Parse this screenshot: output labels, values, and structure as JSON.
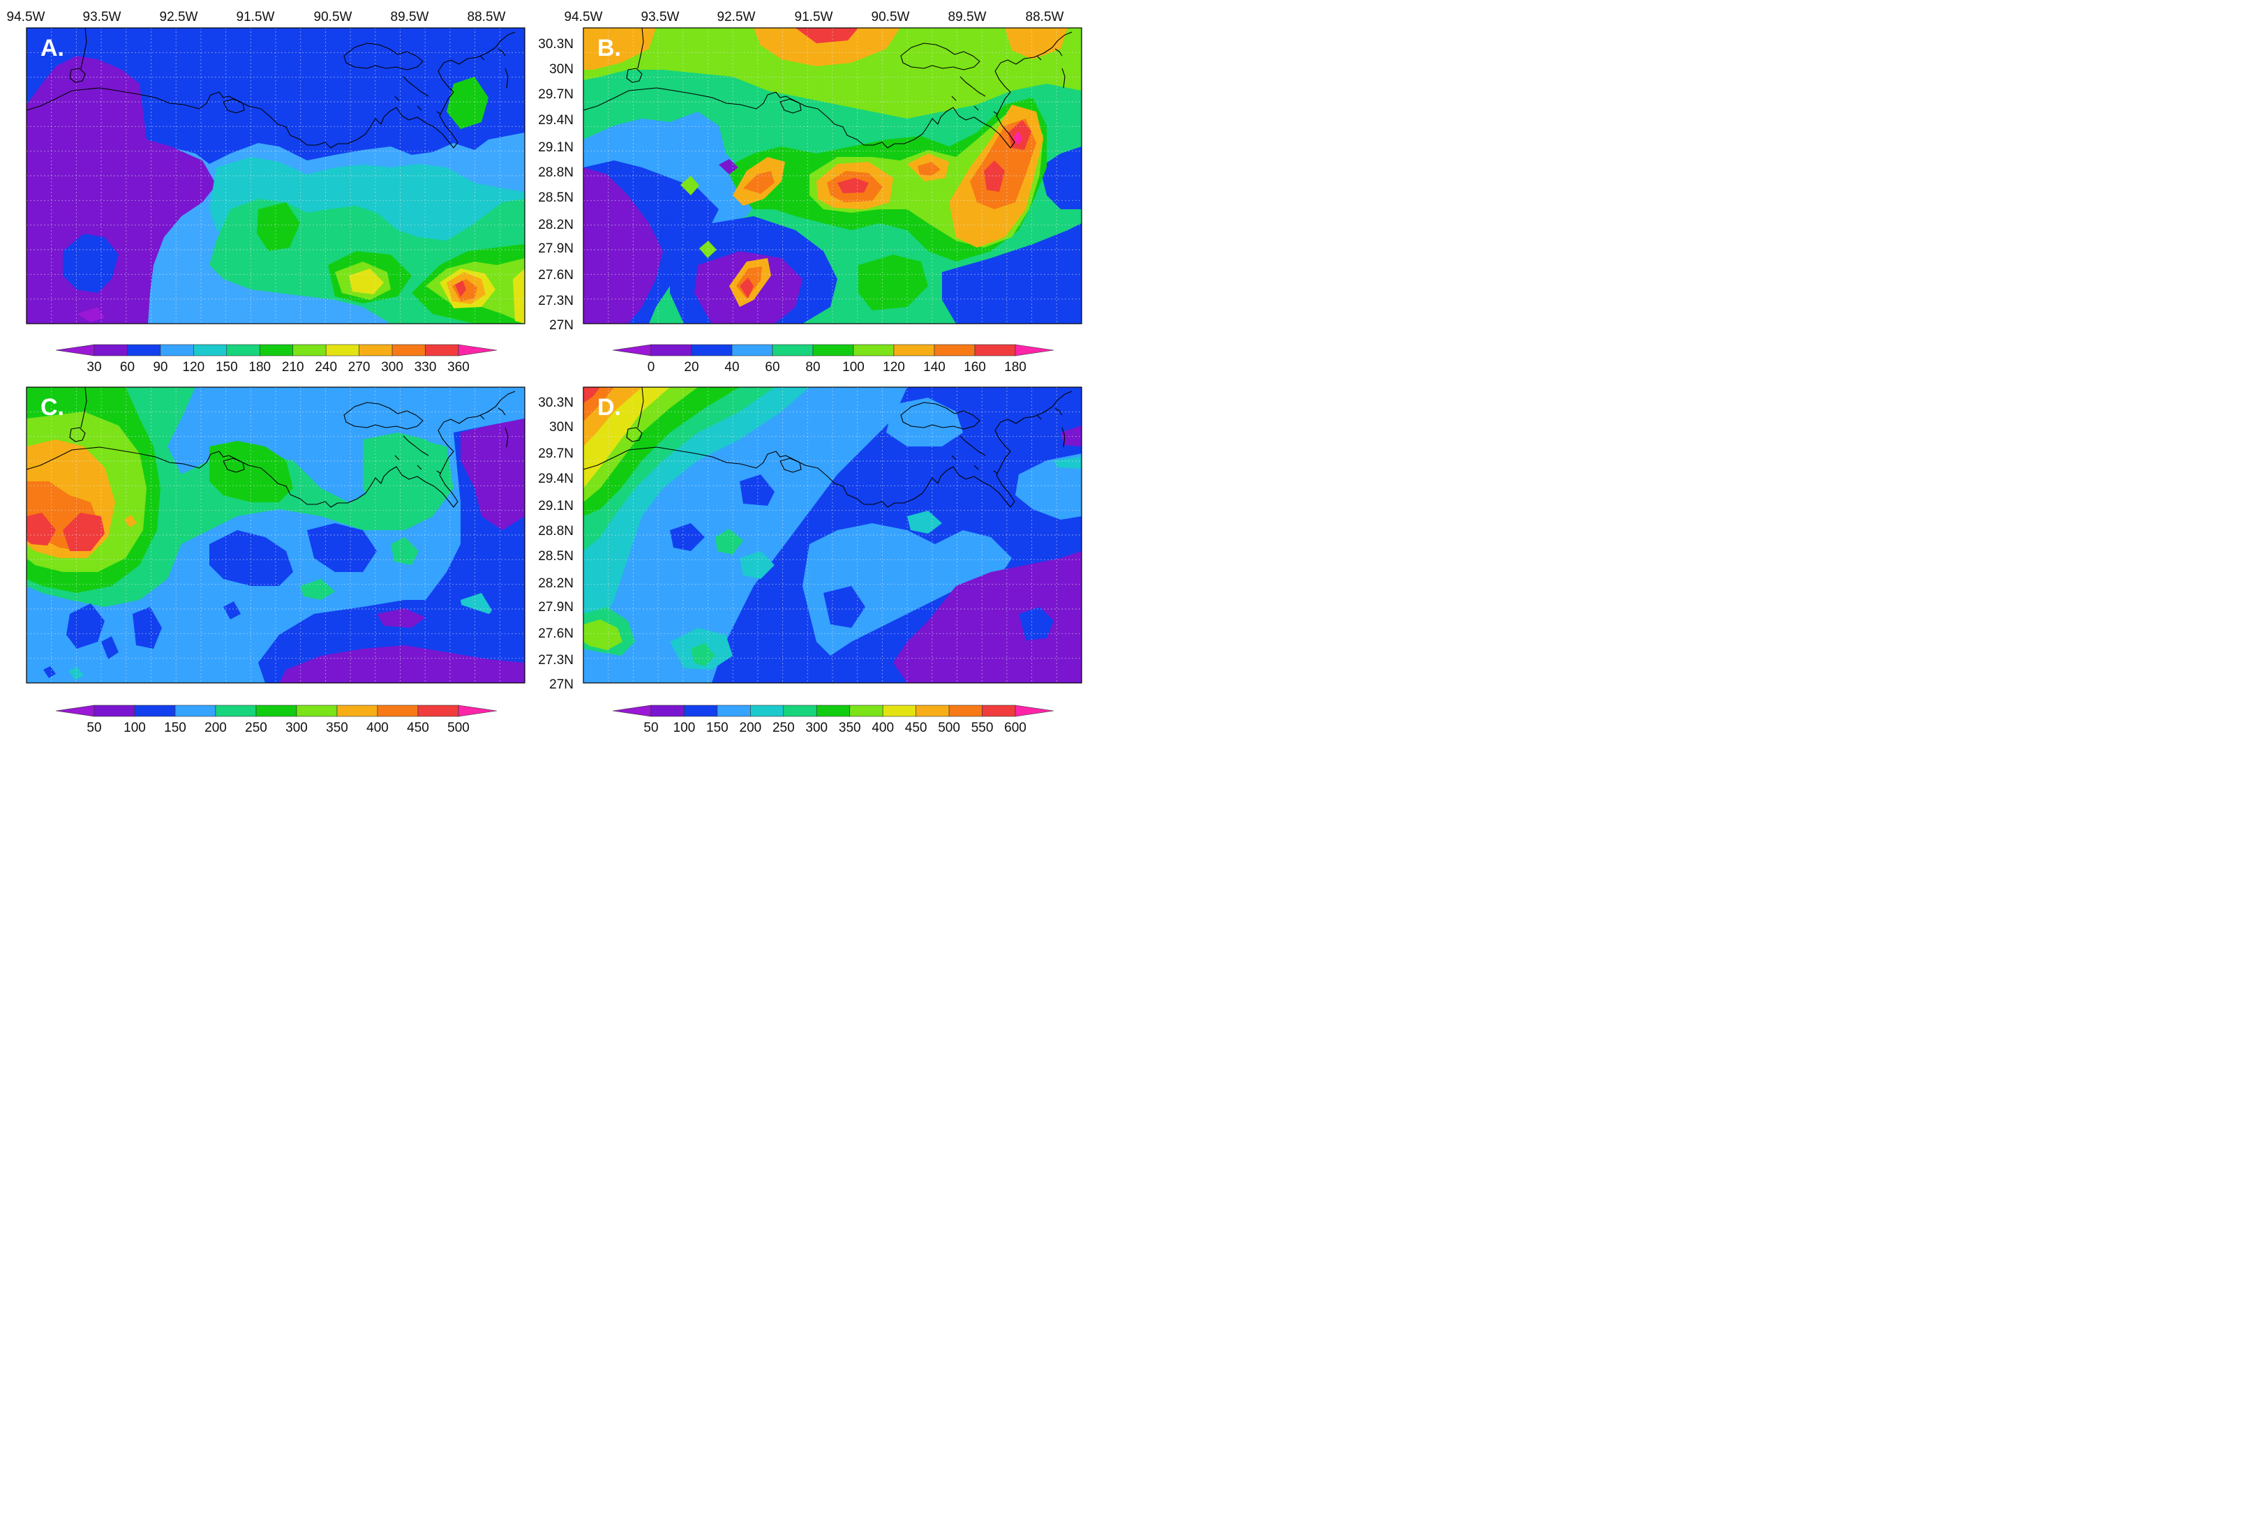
{
  "longitude_ticks": [
    "94.5W",
    "93.5W",
    "92.5W",
    "91.5W",
    "90.5W",
    "89.5W",
    "88.5W"
  ],
  "latitude_ticks": [
    "30.3N",
    "30N",
    "29.7N",
    "29.4N",
    "29.1N",
    "28.8N",
    "28.5N",
    "28.2N",
    "27.9N",
    "27.6N",
    "27.3N",
    "27N"
  ],
  "panels": [
    {
      "label": "A.",
      "background": "#3ea8ff",
      "colorbar": {
        "labels": [
          "30",
          "60",
          "90",
          "120",
          "150",
          "180",
          "210",
          "240",
          "270",
          "300",
          "330",
          "360"
        ],
        "low_end": "#9a18d6",
        "colors": [
          "#7a16cf",
          "#1240ef",
          "#36a3ff",
          "#1cc9cc",
          "#18d47c",
          "#12cc12",
          "#7be318",
          "#e3e312",
          "#f7ae16",
          "#f77a16",
          "#f03c3c"
        ],
        "high_end": "#ff24a8"
      }
    },
    {
      "label": "B.",
      "background": "#18d47c",
      "colorbar": {
        "labels": [
          "0",
          "20",
          "40",
          "60",
          "80",
          "100",
          "120",
          "140",
          "160",
          "180"
        ],
        "low_end": "#9a18d6",
        "colors": [
          "#7a16cf",
          "#1240ef",
          "#36a3ff",
          "#18d47c",
          "#12cc12",
          "#7be318",
          "#f7ae16",
          "#f77a16",
          "#f03c3c"
        ],
        "high_end": "#ff24a8"
      }
    },
    {
      "label": "C.",
      "background": "#36a3ff",
      "colorbar": {
        "labels": [
          "50",
          "100",
          "150",
          "200",
          "250",
          "300",
          "350",
          "400",
          "450",
          "500"
        ],
        "low_end": "#9a18d6",
        "colors": [
          "#7a16cf",
          "#1240ef",
          "#36a3ff",
          "#18d47c",
          "#12cc12",
          "#7be318",
          "#f7ae16",
          "#f77a16",
          "#f03c3c"
        ],
        "high_end": "#ff24a8"
      }
    },
    {
      "label": "D.",
      "background": "#1240ef",
      "colorbar": {
        "labels": [
          "50",
          "100",
          "150",
          "200",
          "250",
          "300",
          "350",
          "400",
          "450",
          "500",
          "550",
          "600"
        ],
        "low_end": "#9a18d6",
        "colors": [
          "#7a16cf",
          "#1240ef",
          "#36a3ff",
          "#1cc9cc",
          "#18d47c",
          "#12cc12",
          "#7be318",
          "#e3e312",
          "#f7ae16",
          "#f77a16",
          "#f03c3c"
        ],
        "high_end": "#ff24a8"
      }
    }
  ]
}
